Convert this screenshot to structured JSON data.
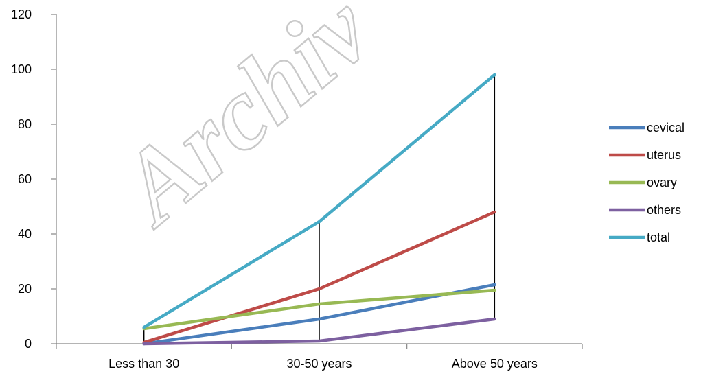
{
  "watermark": {
    "text": "Archiv"
  },
  "chart_data": {
    "type": "line",
    "title": "",
    "xlabel": "",
    "ylabel": "",
    "categories": [
      "Less than 30",
      "30-50 years",
      "Above 50 years"
    ],
    "ylim": [
      0,
      120
    ],
    "yticks": [
      0,
      20,
      40,
      60,
      80,
      100,
      120
    ],
    "grid": false,
    "legend_position": "right",
    "drop_lines": true,
    "series": [
      {
        "name": "cevical",
        "color": "#4a7ebb",
        "values": [
          0,
          9,
          21.5
        ]
      },
      {
        "name": "uterus",
        "color": "#be4b48",
        "values": [
          0.5,
          20,
          48
        ]
      },
      {
        "name": "ovary",
        "color": "#98b954",
        "values": [
          5.5,
          14.5,
          19.5
        ]
      },
      {
        "name": "others",
        "color": "#7d60a0",
        "values": [
          0,
          1,
          9
        ]
      },
      {
        "name": "total",
        "color": "#46aac5",
        "values": [
          6,
          44.5,
          98
        ]
      }
    ]
  }
}
